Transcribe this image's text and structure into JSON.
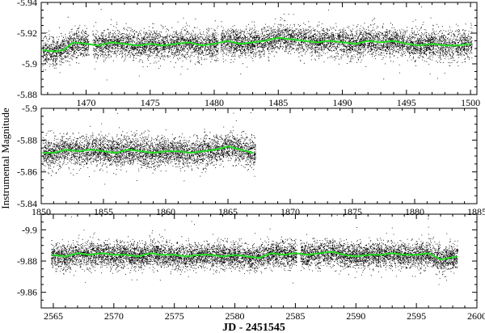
{
  "figure": {
    "ylabel": "Instrumental Magnitude",
    "xlabel": "JD - 2451545"
  },
  "chart_data": [
    {
      "type": "scatter",
      "xlim": [
        1466.5,
        1500.5
      ],
      "ylim": [
        -5.88,
        -5.94
      ],
      "x_ticks": [
        1470,
        1475,
        1480,
        1485,
        1490,
        1495,
        1500
      ],
      "y_ticks": [
        -5.94,
        -5.92,
        -5.9,
        -5.88
      ],
      "tick_labels_x": [
        "1470",
        "1475",
        "1480",
        "1485",
        "1490",
        "1495",
        "1500"
      ],
      "tick_labels_y": [
        "-5.94",
        "-5.92",
        "-5.9",
        "-5.88"
      ],
      "data_range_x": [
        1466.6,
        1500.1
      ],
      "gaps": [
        [
          1470.2,
          1470.5
        ],
        [
          1480.3,
          1480.5
        ]
      ],
      "series": [
        {
          "kind": "points",
          "color": "#000000",
          "center": -5.913,
          "scatter_sigma": 0.0045
        },
        {
          "kind": "line",
          "color": "#22dd22",
          "x": [
            1466.6,
            1467.5,
            1468.2,
            1469.0,
            1470.0,
            1471.0,
            1472.0,
            1473.0,
            1474.0,
            1475.0,
            1476.0,
            1477.0,
            1478.0,
            1479.0,
            1480.0,
            1481.0,
            1482.0,
            1483.0,
            1484.0,
            1485.0,
            1486.0,
            1487.0,
            1488.0,
            1489.0,
            1490.0,
            1491.0,
            1492.0,
            1493.0,
            1494.0,
            1495.0,
            1496.0,
            1497.0,
            1498.0,
            1499.0,
            1500.0
          ],
          "y": [
            -5.909,
            -5.908,
            -5.909,
            -5.914,
            -5.913,
            -5.912,
            -5.914,
            -5.913,
            -5.912,
            -5.913,
            -5.912,
            -5.913,
            -5.914,
            -5.912,
            -5.913,
            -5.915,
            -5.913,
            -5.914,
            -5.915,
            -5.917,
            -5.916,
            -5.915,
            -5.914,
            -5.915,
            -5.914,
            -5.913,
            -5.915,
            -5.914,
            -5.915,
            -5.913,
            -5.912,
            -5.913,
            -5.912,
            -5.912,
            -5.913
          ]
        }
      ]
    },
    {
      "type": "scatter",
      "xlim": [
        1850,
        1885
      ],
      "ylim": [
        -5.84,
        -5.9
      ],
      "x_ticks": [
        1850,
        1855,
        1860,
        1865,
        1870,
        1875,
        1880,
        1885
      ],
      "y_ticks": [
        -5.9,
        -5.88,
        -5.86,
        -5.84
      ],
      "tick_labels_x": [
        "1850",
        "1855",
        "1860",
        "1865",
        "1870",
        "1875",
        "1880",
        "1885"
      ],
      "tick_labels_y": [
        "-5.9",
        "-5.88",
        "-5.86",
        "-5.84"
      ],
      "data_range_x": [
        1850.1,
        1867.2
      ],
      "gaps": [],
      "series": [
        {
          "kind": "points",
          "color": "#000000",
          "center": -5.873,
          "scatter_sigma": 0.0045
        },
        {
          "kind": "line",
          "color": "#22dd22",
          "x": [
            1850.1,
            1851.0,
            1852.0,
            1853.0,
            1854.0,
            1855.0,
            1856.0,
            1857.0,
            1858.0,
            1859.0,
            1860.0,
            1861.0,
            1862.0,
            1863.0,
            1864.0,
            1865.0,
            1866.0,
            1867.0
          ],
          "y": [
            -5.872,
            -5.872,
            -5.874,
            -5.873,
            -5.874,
            -5.873,
            -5.872,
            -5.874,
            -5.873,
            -5.872,
            -5.873,
            -5.873,
            -5.872,
            -5.873,
            -5.874,
            -5.876,
            -5.874,
            -5.872
          ]
        }
      ]
    },
    {
      "type": "scatter",
      "xlim": [
        2564,
        2600
      ],
      "ylim": [
        -9.85,
        -9.91
      ],
      "x_ticks": [
        2565,
        2570,
        2575,
        2580,
        2585,
        2590,
        2595,
        2600
      ],
      "y_ticks": [
        -9.9,
        -9.88,
        -9.86
      ],
      "tick_labels_x": [
        "2565",
        "2570",
        "2575",
        "2580",
        "2585",
        "2590",
        "2595",
        "2600"
      ],
      "tick_labels_y": [
        "-9.9",
        "-9.88",
        "-9.86"
      ],
      "data_range_x": [
        2564.8,
        2598.4
      ],
      "gaps": [
        [
          2585.1,
          2585.4
        ]
      ],
      "series": [
        {
          "kind": "points",
          "color": "#000000",
          "center": -9.884,
          "scatter_sigma": 0.004
        },
        {
          "kind": "line",
          "color": "#22dd22",
          "x": [
            2564.8,
            2566.0,
            2567.0,
            2568.0,
            2569.0,
            2570.0,
            2571.0,
            2572.0,
            2573.0,
            2574.0,
            2575.0,
            2576.0,
            2577.0,
            2578.0,
            2579.0,
            2580.0,
            2581.0,
            2582.0,
            2583.0,
            2584.0,
            2585.0,
            2586.0,
            2587.0,
            2588.0,
            2589.0,
            2590.0,
            2591.0,
            2592.0,
            2593.0,
            2594.0,
            2595.0,
            2596.0,
            2597.0,
            2598.4
          ],
          "y": [
            -9.884,
            -9.883,
            -9.885,
            -9.884,
            -9.885,
            -9.884,
            -9.884,
            -9.883,
            -9.885,
            -9.884,
            -9.884,
            -9.883,
            -9.884,
            -9.884,
            -9.883,
            -9.884,
            -9.883,
            -9.882,
            -9.885,
            -9.884,
            -9.885,
            -9.884,
            -9.885,
            -9.886,
            -9.884,
            -9.883,
            -9.884,
            -9.884,
            -9.885,
            -9.884,
            -9.884,
            -9.885,
            -9.881,
            -9.883
          ]
        }
      ]
    }
  ]
}
